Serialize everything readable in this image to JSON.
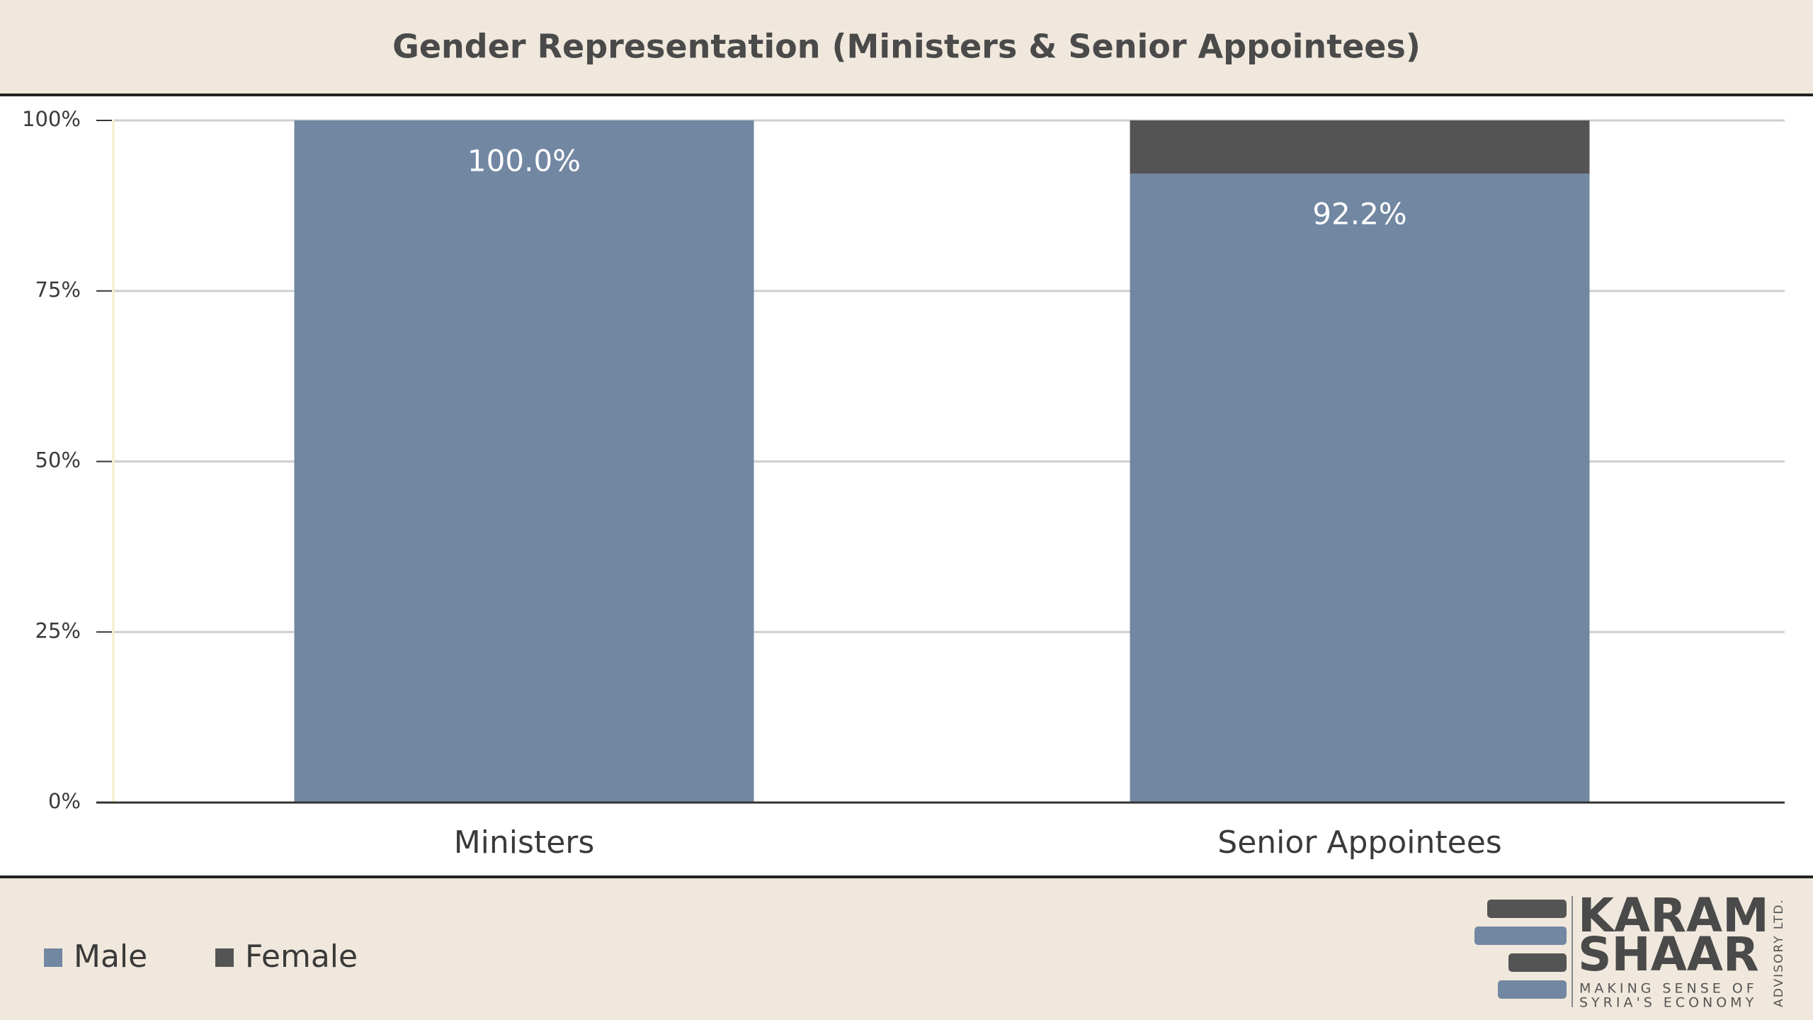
{
  "chart_data": {
    "type": "stacked_bar",
    "title": "Gender Representation (Ministers & Senior Appointees)",
    "categories": [
      "Ministers",
      "Senior Appointees"
    ],
    "series": [
      {
        "name": "Male",
        "color": "#7287a2",
        "values": [
          100,
          92.2
        ],
        "value_labels": [
          "100.0%",
          "92.2%"
        ]
      },
      {
        "name": "Female",
        "color": "#545454",
        "values": [
          0,
          7.8
        ]
      }
    ],
    "ylim": [
      0,
      100
    ],
    "yticks": [
      {
        "value": 0,
        "label": "0%"
      },
      {
        "value": 25,
        "label": "25%"
      },
      {
        "value": 50,
        "label": "50%"
      },
      {
        "value": 75,
        "label": "75%"
      },
      {
        "value": 100,
        "label": "100%"
      }
    ],
    "grid": true,
    "legend": "bottom-left"
  },
  "logo": {
    "line1": "KARAM",
    "line2": "SHAAR",
    "tagline1": "MAKING SENSE OF",
    "tagline2": "SYRIA'S ECONOMY",
    "side": "ADVISORY LTD."
  }
}
